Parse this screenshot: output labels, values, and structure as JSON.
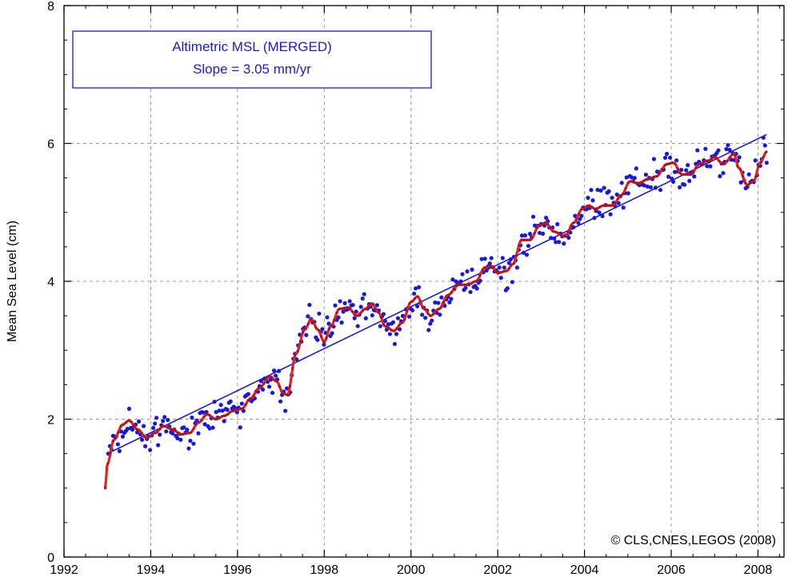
{
  "chart_data": {
    "type": "line",
    "title": "",
    "xlabel": "",
    "ylabel": "Mean Sea Level (cm)",
    "xlim": [
      1992,
      2008.6
    ],
    "ylim": [
      0,
      8
    ],
    "x_ticks": [
      1992,
      1994,
      1996,
      1998,
      2000,
      2002,
      2004,
      2006,
      2008
    ],
    "y_ticks": [
      0,
      2,
      4,
      6,
      8
    ],
    "grid": true,
    "legend": {
      "placement": "top-left",
      "lines": [
        "Altimetric MSL (MERGED)",
        "Slope = 3.05 mm/yr"
      ]
    },
    "annotation": "© CLS,CNES,LEGOS (2008)",
    "colors": {
      "measurements": "#1a1ad6",
      "smoothed": "#e8201e",
      "trend": "#1a1ad6",
      "grid": "#9a9a9a"
    },
    "trend_line": {
      "x": [
        1993.0,
        2008.2
      ],
      "y": [
        1.5,
        6.13
      ]
    },
    "smoothed_knots": [
      [
        1992.95,
        1.0
      ],
      [
        1993.0,
        1.35
      ],
      [
        1993.15,
        1.7
      ],
      [
        1993.35,
        1.92
      ],
      [
        1993.5,
        1.98
      ],
      [
        1993.7,
        1.85
      ],
      [
        1993.9,
        1.73
      ],
      [
        1994.1,
        1.8
      ],
      [
        1994.3,
        1.9
      ],
      [
        1994.5,
        1.85
      ],
      [
        1994.7,
        1.78
      ],
      [
        1994.9,
        1.8
      ],
      [
        1995.1,
        1.95
      ],
      [
        1995.3,
        2.07
      ],
      [
        1995.5,
        2.0
      ],
      [
        1995.7,
        2.05
      ],
      [
        1995.9,
        2.12
      ],
      [
        1996.1,
        2.15
      ],
      [
        1996.3,
        2.3
      ],
      [
        1996.5,
        2.45
      ],
      [
        1996.75,
        2.62
      ],
      [
        1996.9,
        2.55
      ],
      [
        1997.05,
        2.38
      ],
      [
        1997.15,
        2.35
      ],
      [
        1997.35,
        2.95
      ],
      [
        1997.55,
        3.3
      ],
      [
        1997.7,
        3.45
      ],
      [
        1997.85,
        3.3
      ],
      [
        1998.0,
        3.12
      ],
      [
        1998.15,
        3.35
      ],
      [
        1998.35,
        3.6
      ],
      [
        1998.55,
        3.62
      ],
      [
        1998.75,
        3.5
      ],
      [
        1998.95,
        3.6
      ],
      [
        1999.1,
        3.68
      ],
      [
        1999.25,
        3.55
      ],
      [
        1999.4,
        3.35
      ],
      [
        1999.6,
        3.28
      ],
      [
        1999.8,
        3.4
      ],
      [
        2000.0,
        3.7
      ],
      [
        2000.15,
        3.78
      ],
      [
        2000.3,
        3.6
      ],
      [
        2000.45,
        3.5
      ],
      [
        2000.65,
        3.6
      ],
      [
        2000.85,
        3.8
      ],
      [
        2001.1,
        3.95
      ],
      [
        2001.3,
        3.95
      ],
      [
        2001.5,
        4.0
      ],
      [
        2001.7,
        4.2
      ],
      [
        2001.85,
        4.22
      ],
      [
        2002.0,
        4.12
      ],
      [
        2002.2,
        4.15
      ],
      [
        2002.35,
        4.25
      ],
      [
        2002.55,
        4.6
      ],
      [
        2002.75,
        4.6
      ],
      [
        2002.95,
        4.8
      ],
      [
        2003.1,
        4.85
      ],
      [
        2003.3,
        4.72
      ],
      [
        2003.55,
        4.65
      ],
      [
        2003.75,
        4.85
      ],
      [
        2003.95,
        5.05
      ],
      [
        2004.1,
        5.1
      ],
      [
        2004.25,
        5.05
      ],
      [
        2004.45,
        5.1
      ],
      [
        2004.65,
        5.1
      ],
      [
        2004.85,
        5.25
      ],
      [
        2005.05,
        5.45
      ],
      [
        2005.25,
        5.42
      ],
      [
        2005.45,
        5.48
      ],
      [
        2005.65,
        5.52
      ],
      [
        2005.9,
        5.7
      ],
      [
        2006.05,
        5.72
      ],
      [
        2006.25,
        5.55
      ],
      [
        2006.45,
        5.55
      ],
      [
        2006.65,
        5.7
      ],
      [
        2006.85,
        5.75
      ],
      [
        2007.0,
        5.8
      ],
      [
        2007.2,
        5.7
      ],
      [
        2007.45,
        5.85
      ],
      [
        2007.55,
        5.65
      ],
      [
        2007.75,
        5.4
      ],
      [
        2007.9,
        5.45
      ],
      [
        2008.05,
        5.72
      ],
      [
        2008.2,
        5.88
      ]
    ],
    "measurement_noise_cm": 0.12,
    "measurement_count": 410
  }
}
